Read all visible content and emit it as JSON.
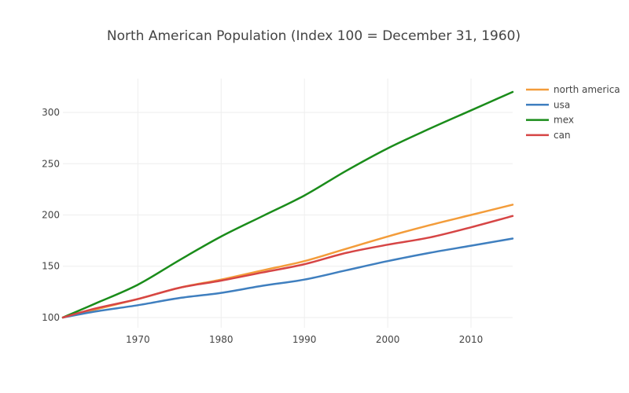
{
  "chart_data": {
    "type": "line",
    "title": "North American Population (Index 100 = December 31, 1960)",
    "xlabel": "",
    "ylabel": "",
    "xlim": [
      1961,
      2015
    ],
    "ylim": [
      90,
      333
    ],
    "x_ticks": [
      1970,
      1980,
      1990,
      2000,
      2010
    ],
    "y_ticks": [
      100,
      150,
      200,
      250,
      300
    ],
    "grid": true,
    "legend_position": "top-right",
    "x": [
      1961,
      1965,
      1970,
      1975,
      1980,
      1985,
      1990,
      1995,
      2000,
      2005,
      2010,
      2015
    ],
    "series": [
      {
        "name": "north america",
        "color": "#f39c3a",
        "values": [
          100,
          108,
          118,
          129,
          137,
          146,
          155,
          167,
          179,
          190,
          200,
          210
        ]
      },
      {
        "name": "usa",
        "color": "#3f7fbf",
        "values": [
          100,
          106,
          112,
          119,
          124,
          131,
          137,
          146,
          155,
          163,
          170,
          177
        ]
      },
      {
        "name": "mex",
        "color": "#1a8c1a",
        "values": [
          100,
          114,
          132,
          156,
          179,
          199,
          219,
          243,
          265,
          284,
          302,
          320
        ]
      },
      {
        "name": "can",
        "color": "#d64545",
        "values": [
          100,
          109,
          118,
          129,
          136,
          144,
          152,
          163,
          171,
          178,
          188,
          199
        ]
      }
    ]
  }
}
